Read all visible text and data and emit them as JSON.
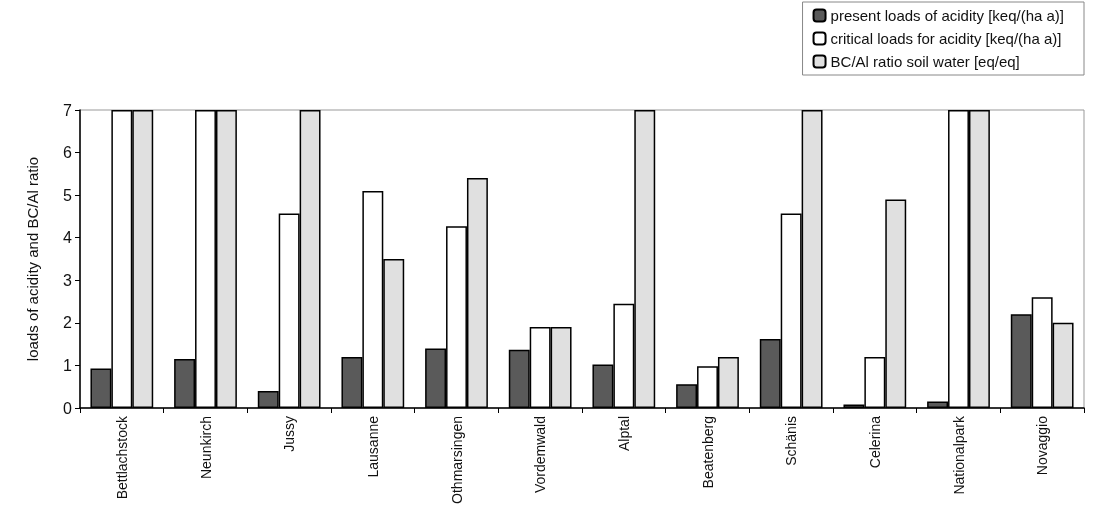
{
  "chart_data": {
    "type": "bar",
    "ylabel": "loads of acidity and BC/Al ratio",
    "categories": [
      "Bettlachstock",
      "Neunkirch",
      "Jussy",
      "Lausanne",
      "Othmarsingen",
      "Vordemwald",
      "Alptal",
      "Beatenberg",
      "Schänis",
      "Celerina",
      "Nationalpark",
      "Novaggio"
    ],
    "series": [
      {
        "name": "present loads of acidity [keq/(ha a)]",
        "color": "#5a5a5a",
        "values": [
          0.93,
          1.15,
          0.4,
          1.2,
          1.4,
          1.37,
          1.02,
          0.56,
          1.62,
          0.08,
          0.15,
          2.2
        ]
      },
      {
        "name": "critical loads for acidity [keq/(ha a)]",
        "color": "#ffffff",
        "values": [
          7,
          7,
          4.57,
          5.1,
          4.27,
          1.9,
          2.45,
          0.98,
          4.57,
          1.2,
          7,
          2.6
        ]
      },
      {
        "name": "BC/Al ratio soil water [eq/eq]",
        "color": "#e0e0e0",
        "values": [
          7,
          7,
          7,
          3.5,
          5.4,
          1.9,
          7,
          1.2,
          7,
          4.9,
          7,
          2.0
        ]
      }
    ],
    "ylim": [
      0,
      7
    ],
    "yticks": [
      0,
      1,
      2,
      3,
      4,
      5,
      6,
      7
    ],
    "grid": false,
    "legend": "top right"
  }
}
